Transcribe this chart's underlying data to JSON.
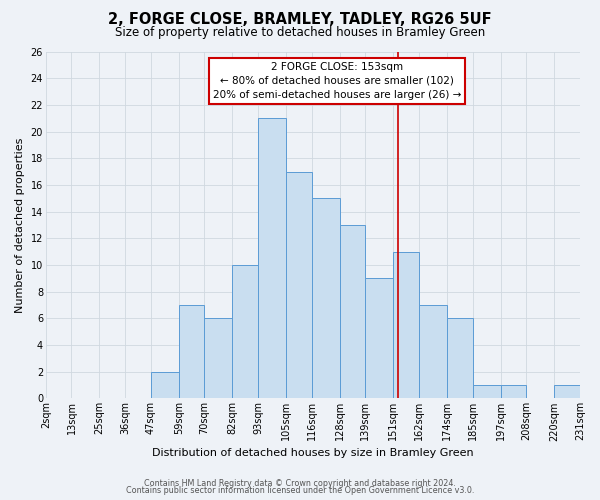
{
  "title": "2, FORGE CLOSE, BRAMLEY, TADLEY, RG26 5UF",
  "subtitle": "Size of property relative to detached houses in Bramley Green",
  "xlabel": "Distribution of detached houses by size in Bramley Green",
  "ylabel": "Number of detached properties",
  "footer_line1": "Contains HM Land Registry data © Crown copyright and database right 2024.",
  "footer_line2": "Contains public sector information licensed under the Open Government Licence v3.0.",
  "bar_edges": [
    2,
    13,
    25,
    36,
    47,
    59,
    70,
    82,
    93,
    105,
    116,
    128,
    139,
    151,
    162,
    174,
    185,
    197,
    208,
    220,
    231
  ],
  "bar_heights": [
    0,
    0,
    0,
    0,
    2,
    7,
    6,
    10,
    21,
    17,
    15,
    13,
    9,
    11,
    7,
    6,
    1,
    1,
    0,
    1
  ],
  "bar_color": "#c9def0",
  "bar_edge_color": "#5b9bd5",
  "vline_x": 153,
  "vline_color": "#cc0000",
  "ylim": [
    0,
    26
  ],
  "yticks": [
    0,
    2,
    4,
    6,
    8,
    10,
    12,
    14,
    16,
    18,
    20,
    22,
    24,
    26
  ],
  "xtick_labels": [
    "2sqm",
    "13sqm",
    "25sqm",
    "36sqm",
    "47sqm",
    "59sqm",
    "70sqm",
    "82sqm",
    "93sqm",
    "105sqm",
    "116sqm",
    "128sqm",
    "139sqm",
    "151sqm",
    "162sqm",
    "174sqm",
    "185sqm",
    "197sqm",
    "208sqm",
    "220sqm",
    "231sqm"
  ],
  "annotation_title": "2 FORGE CLOSE: 153sqm",
  "annotation_line1": "← 80% of detached houses are smaller (102)",
  "annotation_line2": "20% of semi-detached houses are larger (26) →",
  "grid_color": "#d0d8e0",
  "bg_color": "#eef2f7",
  "title_fontsize": 10.5,
  "subtitle_fontsize": 8.5,
  "ylabel_fontsize": 8,
  "xlabel_fontsize": 8,
  "tick_fontsize": 7,
  "annot_fontsize": 7.5,
  "footer_fontsize": 5.8
}
